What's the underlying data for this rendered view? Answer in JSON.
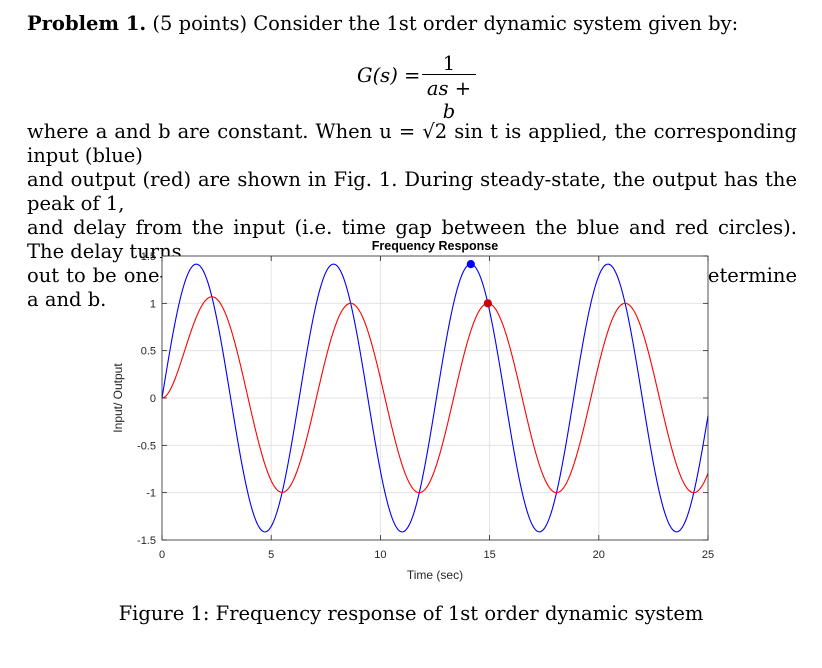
{
  "problem": {
    "label": "Problem 1.",
    "points": "(5 points)",
    "intro": "Consider the 1st order dynamic system given by:",
    "equation_lhs": "G(s) =",
    "equation_num": "1",
    "equation_den": "as + b",
    "body_lines": [
      "where a and b are constant. When u = √2 sin t is applied, the corresponding input (blue)",
      "and output (red) are shown in Fig. 1. During steady-state, the output has the peak of 1,",
      "and delay from the input (i.e. time gap between the blue and red circles). The delay turns",
      "out to be one-eight of the input period. Based on this observation, determine a and b."
    ]
  },
  "chart_data": {
    "type": "line",
    "title": "Frequency Response",
    "xlabel": "Time (sec)",
    "ylabel": "Input/ Output",
    "xlim": [
      0,
      25
    ],
    "ylim": [
      -1.5,
      1.5
    ],
    "xticks": [
      0,
      5,
      10,
      15,
      20,
      25
    ],
    "yticks": [
      1.5,
      1,
      0.5,
      0,
      -0.5,
      -1,
      -1.5
    ],
    "grid": true,
    "series": [
      {
        "color": "#0000ff",
        "function": "1.4142 * sin(t)"
      },
      {
        "color": "#ff0000",
        "function": "sin(t - pi/4) + 0.7071 * exp(-t)"
      }
    ],
    "markers": [
      {
        "x": 14.14,
        "y": 1.4142,
        "color": "#0000ff"
      },
      {
        "x": 14.92,
        "y": 1.0,
        "color": "#cc0000"
      }
    ]
  },
  "caption": "Figure 1: Frequency response of 1st order dynamic system"
}
